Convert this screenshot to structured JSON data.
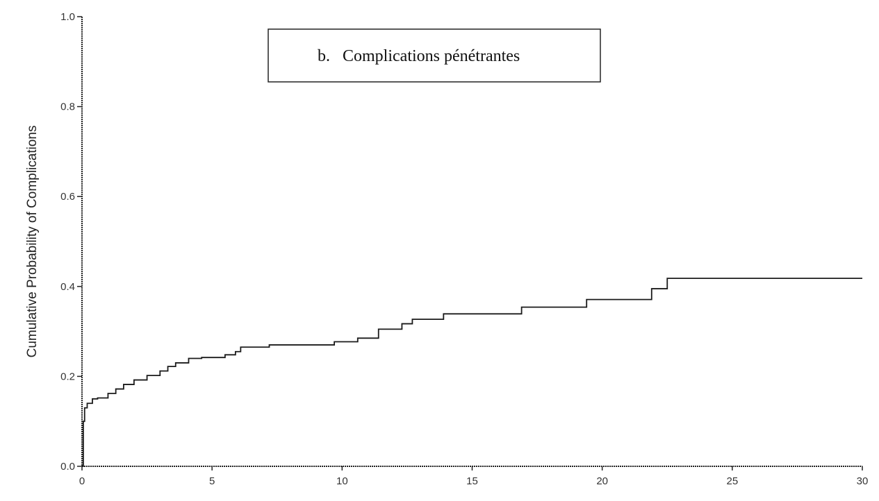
{
  "chart_data": {
    "type": "line",
    "title": "b.   Complications pénétrantes",
    "ylabel": "Cumulative  Probability of  Complications",
    "xlabel": "",
    "xlim": [
      0,
      30
    ],
    "ylim": [
      0,
      1
    ],
    "x_ticks": [
      "0",
      "5",
      "10",
      "15",
      "20",
      "25",
      "30"
    ],
    "y_ticks": [
      "0.0",
      "0.2",
      "0.4",
      "0.6",
      "0.8",
      "1.0"
    ],
    "grid": false,
    "step": true,
    "series": [
      {
        "color": "#1a1a1a",
        "x": [
          0,
          0.05,
          0.1,
          0.2,
          0.4,
          0.6,
          1.0,
          1.3,
          1.6,
          2.0,
          2.5,
          3.0,
          3.3,
          3.6,
          4.1,
          4.6,
          5.5,
          5.9,
          6.1,
          7.2,
          9.7,
          10.6,
          11.4,
          12.3,
          12.7,
          13.9,
          16.9,
          19.4,
          21.9,
          22.5,
          30.0
        ],
        "y": [
          0.0,
          0.1,
          0.13,
          0.14,
          0.15,
          0.152,
          0.162,
          0.172,
          0.182,
          0.192,
          0.202,
          0.212,
          0.222,
          0.23,
          0.24,
          0.242,
          0.248,
          0.255,
          0.265,
          0.27,
          0.277,
          0.285,
          0.305,
          0.317,
          0.327,
          0.339,
          0.354,
          0.371,
          0.395,
          0.418,
          0.418
        ]
      }
    ]
  }
}
